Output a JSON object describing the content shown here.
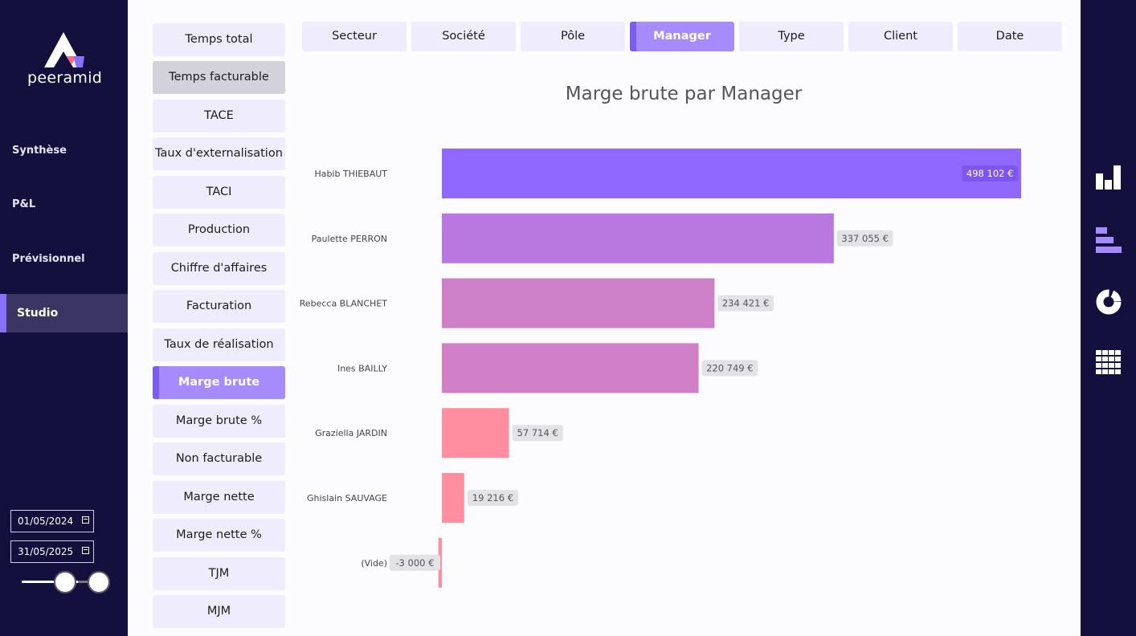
{
  "app": {
    "logo_text": "peeramid"
  },
  "nav": {
    "items": [
      {
        "label": "Synthèse",
        "active": false
      },
      {
        "label": "P&L",
        "active": false
      },
      {
        "label": "Prévisionnel",
        "active": false
      },
      {
        "label": "Studio",
        "active": true
      }
    ]
  },
  "dates": {
    "start": "01/05/2024",
    "end": "31/05/2025"
  },
  "slider": {
    "range_fraction": [
      0.5,
      0.9
    ]
  },
  "measures": [
    {
      "label": "Temps total"
    },
    {
      "label": "Temps facturable",
      "state": "hover"
    },
    {
      "label": "TACE"
    },
    {
      "label": "Taux d'externalisation"
    },
    {
      "label": "TACI"
    },
    {
      "label": "Production"
    },
    {
      "label": "Chiffre d'affaires"
    },
    {
      "label": "Facturation"
    },
    {
      "label": "Taux de réalisation"
    },
    {
      "label": "Marge brute",
      "state": "active"
    },
    {
      "label": "Marge brute %"
    },
    {
      "label": "Non facturable"
    },
    {
      "label": "Marge nette"
    },
    {
      "label": "Marge nette %"
    },
    {
      "label": "TJM"
    },
    {
      "label": "MJM"
    }
  ],
  "tabs": [
    {
      "label": "Secteur"
    },
    {
      "label": "Société"
    },
    {
      "label": "Pôle"
    },
    {
      "label": "Manager",
      "active": true
    },
    {
      "label": "Type"
    },
    {
      "label": "Client"
    },
    {
      "label": "Date"
    }
  ],
  "right_toolbar": {
    "icons": [
      "column-chart-icon",
      "bar-chart-icon",
      "donut-chart-icon",
      "matrix-icon"
    ]
  },
  "chart_data": {
    "type": "bar",
    "orientation": "horizontal",
    "title": "Marge brute par Manager",
    "categories": [
      "Habib THIEBAUT",
      "Paulette PERRON",
      "Rebecca BLANCHET",
      "Ines BAILLY",
      "Graziella JARDIN",
      "Ghislain SAUVAGE",
      "(Vide)"
    ],
    "values": [
      498102,
      337055,
      234421,
      220749,
      57714,
      19216,
      -3000
    ],
    "labels": [
      "498 102 €",
      "337 055 €",
      "234 421 €",
      "220 749 €",
      "57 714 €",
      "19 216 €",
      "-3 000 €"
    ],
    "colors": [
      "#9068ff",
      "#b978e0",
      "#cd7fc8",
      "#d17fc6",
      "#fe8ea0",
      "#fe8ea0",
      "#fe8ea0"
    ],
    "xlim": [
      -3000,
      498102
    ]
  }
}
